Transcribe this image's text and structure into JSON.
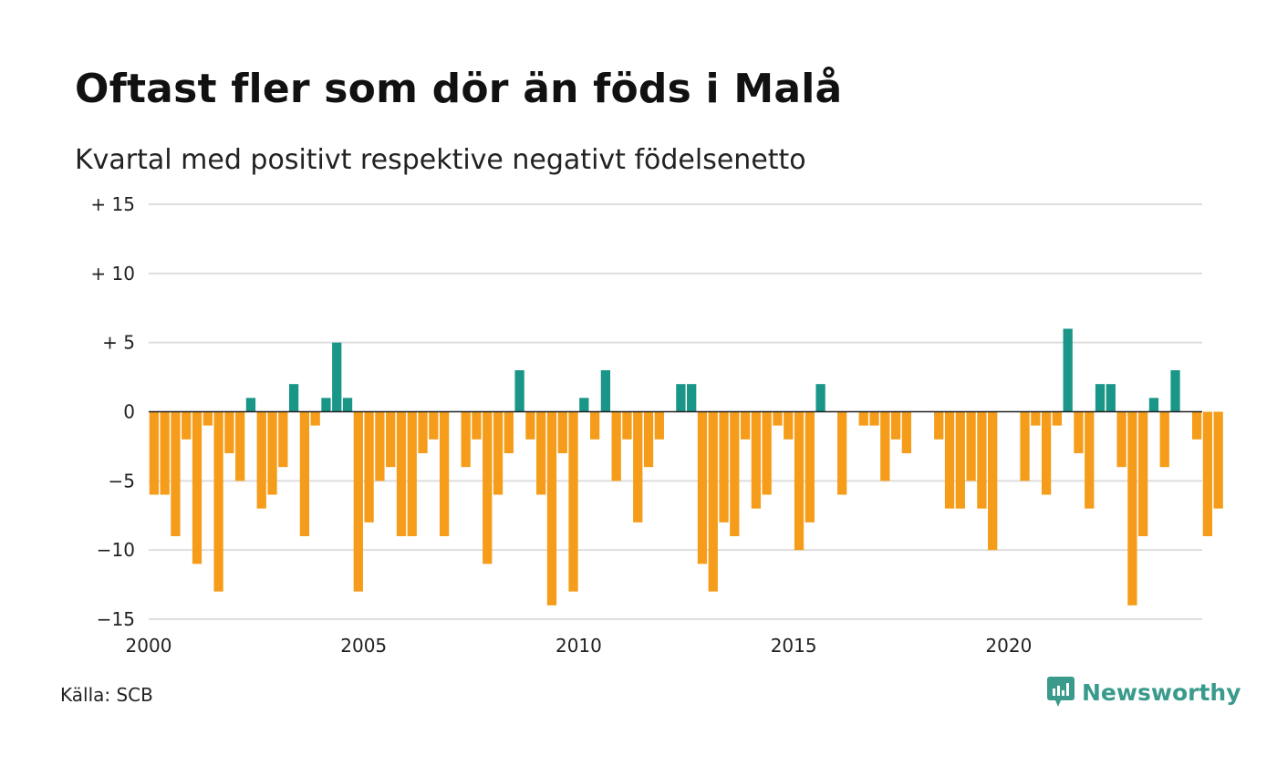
{
  "title": "Oftast fler som dör än föds i Malå",
  "subtitle": "Kvartal med positivt respektive negativt födelsenetto",
  "source": "Källa: SCB",
  "brand": {
    "name": "Newsworthy",
    "icon": "newsworthy-logo-icon"
  },
  "colors": {
    "positive": "#1a9688",
    "negative": "#f59d1b",
    "grid": "#dedede",
    "zero": "#222222",
    "brand": "#3a9b8c"
  },
  "chart_data": {
    "type": "bar",
    "x_start": 2000,
    "x_step": 0.25,
    "ylim": [
      -15,
      15
    ],
    "xlim": [
      2000,
      2024.5
    ],
    "y_ticks": [
      {
        "value": 15,
        "label": "+ 15"
      },
      {
        "value": 10,
        "label": "+ 10"
      },
      {
        "value": 5,
        "label": "+  5"
      },
      {
        "value": 0,
        "label": "0"
      },
      {
        "value": -5,
        "label": "−5"
      },
      {
        "value": -10,
        "label": "−10"
      },
      {
        "value": -15,
        "label": "−15"
      }
    ],
    "x_ticks": [
      {
        "value": 2000,
        "label": "2000"
      },
      {
        "value": 2005,
        "label": "2005"
      },
      {
        "value": 2010,
        "label": "2010"
      },
      {
        "value": 2015,
        "label": "2015"
      },
      {
        "value": 2020,
        "label": "2020"
      }
    ],
    "grid": true,
    "values": [
      -6,
      -6,
      -9,
      -2,
      -11,
      -1,
      -13,
      -3,
      -5,
      1,
      -7,
      -6,
      -4,
      2,
      -9,
      -1,
      1,
      5,
      1,
      -13,
      -8,
      -5,
      -4,
      -9,
      -9,
      -3,
      -2,
      -9,
      0,
      -4,
      -2,
      -11,
      -6,
      -3,
      3,
      -2,
      -6,
      -14,
      -3,
      -13,
      1,
      -2,
      3,
      -5,
      -2,
      -8,
      -4,
      -2,
      0,
      2,
      2,
      -11,
      -13,
      -8,
      -9,
      -2,
      -7,
      -6,
      -1,
      -2,
      -10,
      -8,
      2,
      0,
      -6,
      0,
      -1,
      -1,
      -5,
      -2,
      -3,
      0,
      0,
      -2,
      -7,
      -7,
      -5,
      -7,
      -10,
      0,
      0,
      -5,
      -1,
      -6,
      -1,
      6,
      -3,
      -7,
      2,
      2,
      -4,
      -14,
      -9,
      1,
      -4,
      3,
      0,
      -2,
      -9,
      -7
    ]
  }
}
